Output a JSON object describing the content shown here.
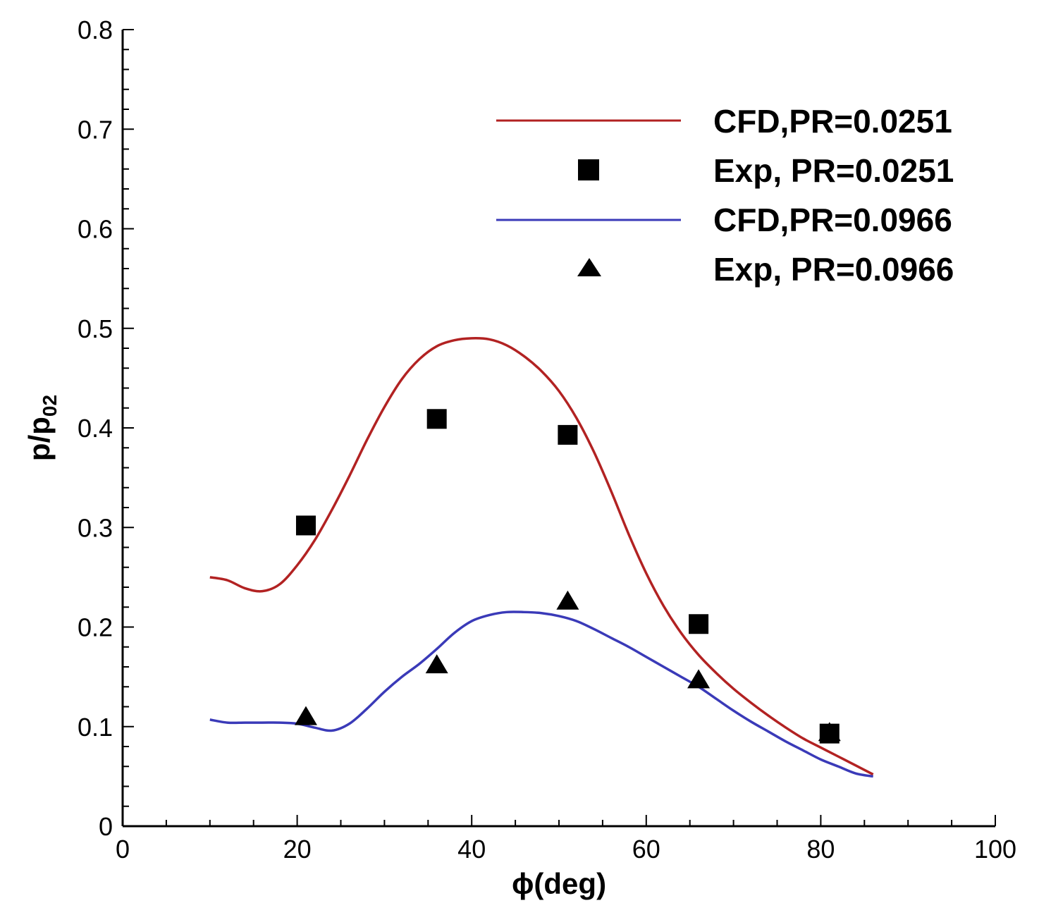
{
  "chart_data": {
    "type": "line",
    "xlabel": "ϕ(deg)",
    "ylabel_main": "p/p",
    "ylabel_sub": "02",
    "xlim": [
      0,
      100
    ],
    "ylim": [
      0,
      0.8
    ],
    "x_ticks": [
      "0",
      "20",
      "40",
      "60",
      "80",
      "100"
    ],
    "y_ticks": [
      "0",
      "0.1",
      "0.2",
      "0.3",
      "0.4",
      "0.5",
      "0.6",
      "0.7",
      "0.8"
    ],
    "grid": false,
    "legend_position": "top-right",
    "series": [
      {
        "name": "CFD,PR=0.0251",
        "kind": "line",
        "color": "#b22222",
        "x": [
          10,
          12,
          14,
          16,
          18,
          20,
          22,
          24,
          26,
          28,
          30,
          32,
          34,
          36,
          38,
          40,
          42,
          44,
          46,
          48,
          50,
          52,
          54,
          56,
          58,
          60,
          62,
          64,
          66,
          68,
          70,
          72,
          74,
          76,
          78,
          80,
          82,
          84,
          86
        ],
        "y": [
          0.25,
          0.247,
          0.239,
          0.236,
          0.243,
          0.262,
          0.287,
          0.318,
          0.352,
          0.388,
          0.421,
          0.449,
          0.469,
          0.482,
          0.488,
          0.49,
          0.489,
          0.483,
          0.472,
          0.457,
          0.437,
          0.41,
          0.376,
          0.336,
          0.293,
          0.254,
          0.221,
          0.194,
          0.172,
          0.154,
          0.138,
          0.124,
          0.111,
          0.099,
          0.088,
          0.079,
          0.07,
          0.061,
          0.052
        ]
      },
      {
        "name": "Exp, PR=0.0251",
        "kind": "marker",
        "marker": "square",
        "color": "#000000",
        "x": [
          21,
          36,
          51,
          66,
          81
        ],
        "y": [
          0.302,
          0.409,
          0.393,
          0.203,
          0.093
        ]
      },
      {
        "name": "CFD,PR=0.0966",
        "kind": "line",
        "color": "#3a3ab8",
        "x": [
          10,
          12,
          14,
          16,
          18,
          20,
          22,
          24,
          26,
          28,
          30,
          32,
          34,
          36,
          38,
          40,
          42,
          44,
          46,
          48,
          50,
          52,
          54,
          56,
          58,
          60,
          62,
          64,
          66,
          68,
          70,
          72,
          74,
          76,
          78,
          80,
          82,
          84,
          86
        ],
        "y": [
          0.107,
          0.104,
          0.104,
          0.104,
          0.104,
          0.103,
          0.099,
          0.096,
          0.103,
          0.118,
          0.135,
          0.15,
          0.163,
          0.178,
          0.194,
          0.206,
          0.212,
          0.215,
          0.215,
          0.214,
          0.211,
          0.206,
          0.198,
          0.189,
          0.18,
          0.17,
          0.16,
          0.15,
          0.14,
          0.128,
          0.116,
          0.105,
          0.095,
          0.085,
          0.076,
          0.067,
          0.06,
          0.053,
          0.05
        ]
      },
      {
        "name": "Exp, PR=0.0966",
        "kind": "marker",
        "marker": "triangle",
        "color": "#000000",
        "x": [
          21,
          36,
          51,
          66,
          81
        ],
        "y": [
          0.11,
          0.162,
          0.226,
          0.147,
          0.094
        ]
      }
    ]
  }
}
